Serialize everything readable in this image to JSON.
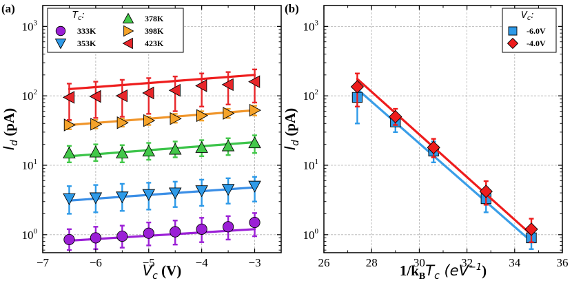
{
  "panels": [
    {
      "id": "a",
      "label": "(a)",
      "xlabel": {
        "sym": "V",
        "sub": "c",
        "unit": " (V)"
      },
      "ylabel": {
        "sym": "I",
        "sub": "d",
        "unit": " (pA)"
      },
      "xlim": [
        -7,
        -2.5
      ],
      "ylim": [
        0.55,
        2000
      ],
      "yscale": "log",
      "xticks": [
        -7,
        -6,
        -5,
        -4,
        -3
      ],
      "xtick_labels": [
        "−7",
        "−6",
        "−5",
        "−4",
        "−3"
      ],
      "yticks": [
        1,
        10,
        100,
        1000
      ],
      "ytick_base": "10",
      "ytick_exps": [
        "0",
        "1",
        "2",
        "3"
      ],
      "grid": true,
      "legend": {
        "title_sym": "T",
        "title_sub": "c",
        "title_suffix": ":",
        "placement": "top-center",
        "columns": 2
      },
      "series": [
        {
          "name": "333K",
          "marker": "circle",
          "color": "#9b1fd6",
          "line_color": "#9b1fd6",
          "x": [
            -6.5,
            -6.0,
            -5.5,
            -5.0,
            -4.5,
            -4.0,
            -3.5,
            -3.0
          ],
          "y": [
            0.85,
            0.9,
            0.95,
            1.05,
            1.1,
            1.2,
            1.3,
            1.5
          ],
          "yerr_low": [
            0.6,
            0.62,
            0.65,
            0.7,
            0.72,
            0.78,
            0.85,
            0.95
          ],
          "yerr_high": [
            1.2,
            1.3,
            1.35,
            1.5,
            1.6,
            1.75,
            1.85,
            2.05
          ],
          "fit": [
            0.82,
            1.2
          ]
        },
        {
          "name": "353K",
          "marker": "triangle-down",
          "color": "#2e9ae8",
          "line_color": "#3a8ee6",
          "x": [
            -6.5,
            -6.0,
            -5.5,
            -5.0,
            -4.5,
            -4.0,
            -3.5,
            -3.0
          ],
          "y": [
            3.3,
            3.4,
            3.5,
            3.8,
            4.0,
            4.3,
            4.5,
            5.0
          ],
          "yerr_low": [
            2.0,
            2.1,
            2.2,
            2.3,
            2.5,
            2.6,
            2.8,
            3.0
          ],
          "yerr_high": [
            5.0,
            5.2,
            5.4,
            5.6,
            5.8,
            6.2,
            6.5,
            6.8
          ],
          "fit": [
            3.1,
            4.8
          ]
        },
        {
          "name": "378K",
          "marker": "triangle-up",
          "color": "#43c84a",
          "line_color": "#3cc44a",
          "x": [
            -6.5,
            -6.0,
            -5.5,
            -5.0,
            -4.5,
            -4.0,
            -3.5,
            -3.0
          ],
          "y": [
            15,
            15.5,
            15,
            16,
            17,
            18,
            19,
            21
          ],
          "yerr_low": [
            11,
            11.5,
            11,
            12,
            13,
            13.5,
            14,
            15
          ],
          "yerr_high": [
            19,
            20,
            19.5,
            21,
            22,
            23,
            24.5,
            27
          ],
          "fit": [
            13.5,
            21.5
          ]
        },
        {
          "name": "398K",
          "marker": "triangle-right",
          "color": "#f5a32a",
          "line_color": "#f0952a",
          "x": [
            -6.5,
            -6.0,
            -5.5,
            -5.0,
            -4.5,
            -4.0,
            -3.5,
            -3.0
          ],
          "y": [
            38,
            39,
            41,
            44,
            47,
            52,
            56,
            62
          ],
          "yerr_low": [
            33,
            34,
            36,
            38,
            41,
            44,
            48,
            52
          ],
          "yerr_high": [
            44,
            45,
            47,
            50,
            55,
            60,
            65,
            72
          ],
          "fit": [
            38,
            62
          ]
        },
        {
          "name": "423K",
          "marker": "triangle-left",
          "color": "#e8262a",
          "line_color": "#ee1c1c",
          "x": [
            -6.5,
            -6.0,
            -5.5,
            -5.0,
            -4.5,
            -4.0,
            -3.5,
            -3.0
          ],
          "y": [
            95,
            98,
            100,
            110,
            120,
            140,
            145,
            160
          ],
          "yerr_low": [
            45,
            48,
            50,
            55,
            60,
            70,
            75,
            80
          ],
          "yerr_high": [
            150,
            160,
            170,
            180,
            190,
            210,
            220,
            240
          ],
          "fit": [
            125,
            200
          ]
        }
      ]
    },
    {
      "id": "b",
      "label": "(b)",
      "xlabel": {
        "pre": "1/k",
        "sub": "B",
        "mid": "T",
        "sub2": "c",
        "unit": " (eV",
        "sup": "−1",
        "close": ")"
      },
      "ylabel": {
        "sym": "I",
        "sub": "d",
        "unit": " (pA)"
      },
      "xlim": [
        26,
        36
      ],
      "ylim": [
        0.55,
        2000
      ],
      "yscale": "log",
      "xticks": [
        26,
        28,
        30,
        32,
        34,
        36
      ],
      "xtick_labels": [
        "26",
        "28",
        "30",
        "32",
        "34",
        "36"
      ],
      "yticks": [
        1,
        10,
        100,
        1000
      ],
      "ytick_base": "10",
      "ytick_exps": [
        "0",
        "1",
        "2",
        "3"
      ],
      "grid": true,
      "legend": {
        "title_sym": "V",
        "title_sub": "c",
        "title_suffix": ":",
        "placement": "top-right",
        "columns": 1
      },
      "series": [
        {
          "name": "-6.0V",
          "marker": "square",
          "color": "#2e9ae8",
          "line_color": "#3a9ee8",
          "x": [
            27.4,
            29.0,
            30.6,
            32.8,
            34.7
          ],
          "y": [
            95,
            42,
            16,
            3.3,
            0.9
          ],
          "yerr_low": [
            40,
            30,
            11,
            2.1,
            0.62
          ],
          "yerr_high": [
            150,
            55,
            22,
            4.8,
            1.25
          ],
          "fit": [
            125,
            0.8
          ]
        },
        {
          "name": "-4.0V",
          "marker": "diamond",
          "color": "#ee1c1c",
          "line_color": "#ee1c1c",
          "x": [
            27.4,
            29.0,
            30.6,
            32.8,
            34.7
          ],
          "y": [
            135,
            50,
            18,
            4.2,
            1.2
          ],
          "yerr_low": [
            70,
            38,
            13,
            2.7,
            0.78
          ],
          "yerr_high": [
            210,
            65,
            24,
            5.9,
            1.7
          ],
          "fit": [
            175,
            1.0
          ]
        }
      ]
    }
  ]
}
